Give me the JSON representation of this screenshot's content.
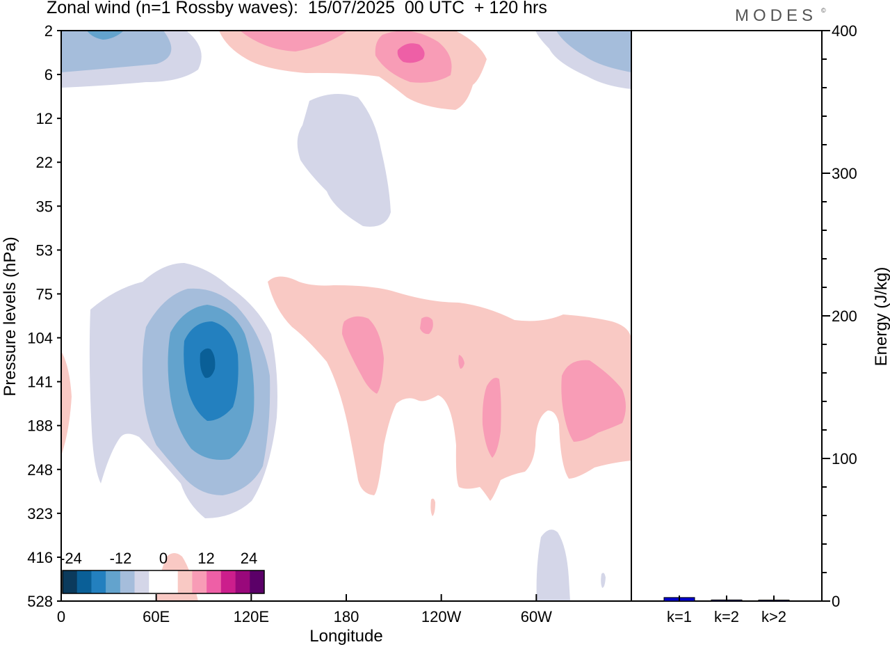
{
  "header": {
    "title": "Zonal wind (n=1 Rossby waves):  15/07/2025  00 UTC  + 120 hrs",
    "brand": "MODES",
    "brand_mark": "©"
  },
  "chart_data": [
    {
      "type": "heatmap",
      "subtype": "filled-contour",
      "xlabel": "Longitude",
      "ylabel": "Pressure levels (hPa)",
      "x_ticks": [
        "0",
        "60E",
        "120E",
        "180",
        "120W",
        "60W"
      ],
      "x_tick_values": [
        0,
        60,
        120,
        180,
        240,
        300
      ],
      "xlim": [
        0,
        360
      ],
      "y_ticks": [
        "2",
        "6",
        "12",
        "22",
        "35",
        "53",
        "75",
        "104",
        "141",
        "188",
        "248",
        "323",
        "416",
        "528"
      ],
      "y_scale": "model levels (pressure, top to bottom)",
      "colorbar": {
        "tick_labels": [
          "-24",
          "-12",
          "0",
          "12",
          "24"
        ],
        "levels": [
          -30,
          -24,
          -18,
          -12,
          -6,
          -3,
          3,
          6,
          12,
          18,
          24,
          30
        ],
        "colors": [
          "#0b3a5c",
          "#0a5f97",
          "#2380bf",
          "#63a3cd",
          "#a5bddb",
          "#d4d6e8",
          "#ffffff",
          "#ffffff",
          "#f9c9c4",
          "#f89cb6",
          "#ee5fa6",
          "#cc1e8c",
          "#99087b",
          "#5b0068"
        ]
      },
      "features": [
        {
          "kind": "negative",
          "level": -6,
          "lon": [
            0,
            60
          ],
          "level_range": [
            "2",
            "6"
          ]
        },
        {
          "kind": "negative",
          "level": -12,
          "lon": [
            20,
            28
          ],
          "level_range": [
            "2",
            "2"
          ]
        },
        {
          "kind": "negative",
          "level": -6,
          "lon": [
            320,
            360
          ],
          "level_range": [
            "2",
            "6"
          ]
        },
        {
          "kind": "negative",
          "level": -3,
          "lon": [
            150,
            210
          ],
          "level_range": [
            "12",
            "35"
          ]
        },
        {
          "kind": "positive",
          "level": 3,
          "lon": [
            100,
            270
          ],
          "level_range": [
            "2",
            "12"
          ]
        },
        {
          "kind": "positive",
          "level": 12,
          "lon": [
            200,
            245
          ],
          "level_range": [
            "2",
            "6"
          ]
        },
        {
          "kind": "positive",
          "level": 18,
          "lon": [
            220,
            230
          ],
          "level_range": [
            "2",
            "6"
          ]
        },
        {
          "kind": "negative",
          "level": -3,
          "lon": [
            20,
            125
          ],
          "level_range": [
            "53",
            "323"
          ]
        },
        {
          "kind": "negative",
          "level": -6,
          "lon": [
            50,
            120
          ],
          "level_range": [
            "75",
            "323"
          ]
        },
        {
          "kind": "negative",
          "level": -12,
          "lon": [
            70,
            110
          ],
          "level_range": [
            "75",
            "248"
          ]
        },
        {
          "kind": "negative",
          "level": -18,
          "lon": [
            75,
            100
          ],
          "level_range": [
            "104",
            "188"
          ]
        },
        {
          "kind": "negative",
          "level": -24,
          "lon": [
            86,
            95
          ],
          "level_range": [
            "104",
            "141"
          ]
        },
        {
          "kind": "positive",
          "level": 3,
          "lon": [
            0,
            8
          ],
          "level_range": [
            "104",
            "248"
          ]
        },
        {
          "kind": "positive",
          "level": 3,
          "lon": [
            130,
            360
          ],
          "level_range": [
            "75",
            "323"
          ]
        },
        {
          "kind": "positive",
          "level": 12,
          "lon": [
            178,
            205
          ],
          "level_range": [
            "104",
            "188"
          ]
        },
        {
          "kind": "positive",
          "level": 12,
          "lon": [
            315,
            360
          ],
          "level_range": [
            "104",
            "248"
          ]
        },
        {
          "kind": "positive",
          "level": 12,
          "lon": [
            268,
            280
          ],
          "level_range": [
            "141",
            "248"
          ]
        },
        {
          "kind": "negative",
          "level": -3,
          "lon": [
            300,
            320
          ],
          "level_range": [
            "416",
            "528"
          ]
        },
        {
          "kind": "positive",
          "level": 3,
          "lon": [
            60,
            80
          ],
          "level_range": [
            "416",
            "528"
          ]
        }
      ]
    },
    {
      "type": "bar",
      "categories": [
        "k=1",
        "k=2",
        "k>2"
      ],
      "values": [
        2.5,
        0.8,
        0.5
      ],
      "ylabel": "Energy (J/kg)",
      "ylim": [
        0,
        400
      ],
      "y_ticks": [
        0,
        100,
        200,
        300,
        400
      ],
      "colors": [
        "#0000cc",
        "#000080",
        "#000080"
      ]
    }
  ]
}
